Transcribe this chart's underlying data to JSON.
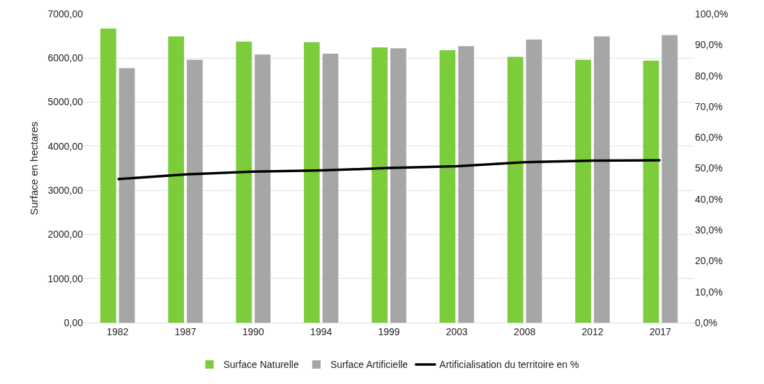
{
  "chart_data": {
    "type": "bar",
    "ylabel": "Surface en hectares",
    "categories": [
      "1982",
      "1987",
      "1990",
      "1994",
      "1999",
      "2003",
      "2008",
      "2012",
      "2017"
    ],
    "series": [
      {
        "name": "Surface Naturelle",
        "color": "#7ccc3c",
        "values": [
          6670,
          6490,
          6370,
          6360,
          6240,
          6180,
          6030,
          5960,
          5940
        ]
      },
      {
        "name": "Surface Artificielle",
        "color": "#a6a6a6",
        "values": [
          5770,
          5960,
          6080,
          6100,
          6220,
          6270,
          6420,
          6490,
          6520
        ]
      },
      {
        "name": "Artificialisation du territoire en %",
        "type": "line",
        "axis": "y2",
        "color": "#000000",
        "marker": "none",
        "line_style": "solid",
        "values": [
          46.5,
          48.0,
          48.9,
          49.3,
          50.1,
          50.7,
          52.0,
          52.5,
          52.6
        ]
      }
    ],
    "ylim": [
      0,
      7000
    ],
    "yticks": [
      {
        "value": 0,
        "label": "0,00"
      },
      {
        "value": 1000,
        "label": "1000,00"
      },
      {
        "value": 2000,
        "label": "2000,00"
      },
      {
        "value": 3000,
        "label": "3000,00"
      },
      {
        "value": 4000,
        "label": "4000,00"
      },
      {
        "value": 5000,
        "label": "5000,00"
      },
      {
        "value": 6000,
        "label": "6000,00"
      },
      {
        "value": 7000,
        "label": "7000,00"
      }
    ],
    "y2lim": [
      0,
      100
    ],
    "y2ticks": [
      {
        "value": 0,
        "label": "0,0%"
      },
      {
        "value": 10,
        "label": "10,0%"
      },
      {
        "value": 20,
        "label": "20,0%"
      },
      {
        "value": 30,
        "label": "30,0%"
      },
      {
        "value": 40,
        "label": "40,0%"
      },
      {
        "value": 50,
        "label": "50,0%"
      },
      {
        "value": 60,
        "label": "60,0%"
      },
      {
        "value": 70,
        "label": "70,0%"
      },
      {
        "value": 80,
        "label": "80,0%"
      },
      {
        "value": 90,
        "label": "90,0%"
      },
      {
        "value": 100,
        "label": "100,0%"
      }
    ],
    "grid": "y",
    "legend": "bottom"
  }
}
